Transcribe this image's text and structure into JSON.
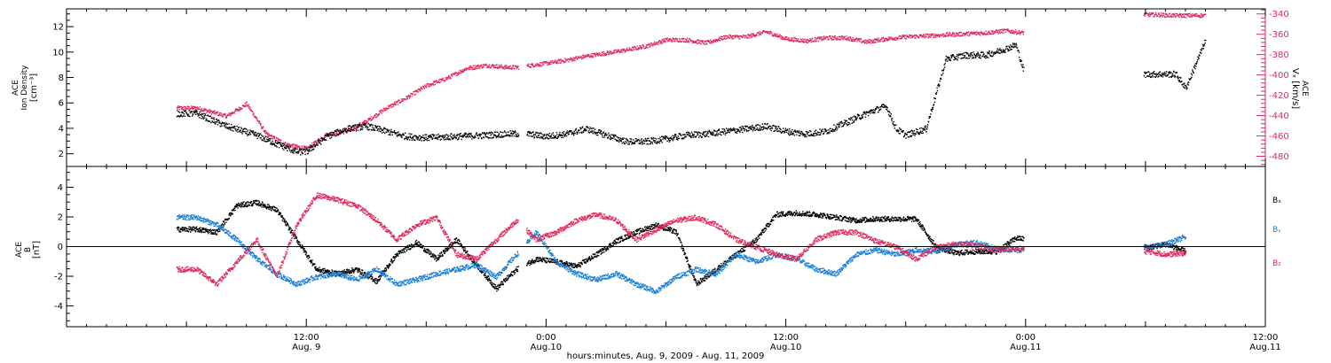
{
  "colors": {
    "black": "#000000",
    "red": "#e0285a",
    "blue": "#1a7fd4"
  },
  "chart_data": [
    {
      "type": "scatter",
      "panel": "top",
      "left_axis": {
        "label": [
          "ACE",
          "Ion Density",
          "[cm⁻³]"
        ],
        "ylim": [
          1,
          13.4
        ],
        "ticks": [
          2,
          4,
          6,
          8,
          10,
          12
        ],
        "tick_labels": [
          "2",
          "4",
          "6",
          "8",
          "10",
          "12"
        ]
      },
      "right_axis": {
        "label": [
          "ACE",
          "Vₓ [km/s]"
        ],
        "ylim": [
          -490,
          -335
        ],
        "ticks": [
          -480,
          -460,
          -440,
          -420,
          -400,
          -380,
          -360,
          -340
        ],
        "tick_labels": [
          "-480",
          "-460",
          "-440",
          "-420",
          "-400",
          "-380",
          "-360",
          "-340"
        ]
      },
      "series": [
        {
          "name": "Ion Density",
          "axis": "left",
          "color": "#000000",
          "x": [
            6.5,
            8,
            9.5,
            10.5,
            11.5,
            12,
            13,
            14,
            15,
            16,
            17,
            18,
            19.5,
            21,
            22,
            23,
            24,
            25,
            26,
            27,
            28,
            29,
            30,
            31,
            32,
            33,
            34,
            35,
            36,
            37,
            38,
            39,
            40,
            41,
            41.5,
            42,
            43,
            44,
            45,
            46,
            46.8,
            47.5,
            48,
            54,
            55.5,
            56,
            57
          ],
          "y": [
            5.2,
            4.2,
            3.5,
            2.8,
            2.2,
            2.2,
            3.4,
            4.0,
            4.2,
            3.8,
            3.4,
            3.3,
            3.4,
            3.5,
            3.6,
            3.6,
            3.4,
            3.6,
            4.0,
            3.5,
            3.0,
            3.0,
            3.2,
            3.5,
            3.6,
            3.8,
            4.0,
            4.2,
            3.8,
            3.6,
            3.8,
            4.5,
            5.2,
            5.8,
            4.0,
            3.5,
            4.0,
            9.5,
            9.8,
            9.8,
            10.2,
            10.6,
            8.0,
            8.3,
            8.3,
            7.2,
            11.0
          ]
        },
        {
          "name": "Vx",
          "axis": "right",
          "color": "#e0285a",
          "x": [
            6.5,
            8,
            9,
            10,
            11,
            12,
            13,
            14,
            15,
            16,
            17,
            18,
            19,
            20,
            21,
            22,
            22.5,
            24,
            25,
            26,
            27,
            28,
            29,
            30,
            31,
            32,
            33,
            34,
            35,
            36,
            37,
            38,
            39,
            40,
            41,
            42,
            43,
            44,
            45,
            46,
            47,
            47.8,
            54,
            55.5,
            56,
            57
          ],
          "y": [
            -432,
            -440,
            -428,
            -458,
            -468,
            -472,
            -458,
            -455,
            -445,
            -432,
            -422,
            -410,
            -403,
            -393,
            -390,
            -392,
            -392,
            -388,
            -385,
            -381,
            -378,
            -375,
            -371,
            -365,
            -365,
            -368,
            -362,
            -362,
            -357,
            -364,
            -366,
            -363,
            -363,
            -367,
            -364,
            -362,
            -361,
            -360,
            -359,
            -358,
            -356,
            -358,
            -340,
            -341,
            -341,
            -341
          ]
        }
      ]
    },
    {
      "type": "line",
      "panel": "bottom",
      "axis_label": [
        "ACE",
        "B",
        "[nT]"
      ],
      "ylim": [
        -5.4,
        5.4
      ],
      "ticks": [
        -4,
        -2,
        0,
        2,
        4
      ],
      "tick_labels": [
        "-4",
        "-2",
        "0",
        "2",
        "4"
      ],
      "xlabel": "hours:minutes, Aug.  9, 2009 - Aug. 11, 2009",
      "x_ticks": [
        12,
        24,
        36,
        48,
        60
      ],
      "x_tick_labels": [
        [
          "12:00",
          "Aug. 9"
        ],
        [
          "0:00",
          "Aug.10"
        ],
        [
          "12:00",
          "Aug.10"
        ],
        [
          "0:00",
          "Aug.11"
        ],
        [
          "12:00",
          "Aug.11"
        ]
      ],
      "series": [
        {
          "name": "Bₓ",
          "color": "#000000",
          "x": [
            6.5,
            7.5,
            8.5,
            9.5,
            10.5,
            11.5,
            12.5,
            13.5,
            14.5,
            15.5,
            16.5,
            17.5,
            18.5,
            19.5,
            20.5,
            21.5,
            22.5,
            23.5,
            24.5,
            25.5,
            26.5,
            27.5,
            28.5,
            29.5,
            30.5,
            31.5,
            32.5,
            33.5,
            34.5,
            35.5,
            36.5,
            37.5,
            38.5,
            39.5,
            40.5,
            41.5,
            42.5,
            43.5,
            44.5,
            45.5,
            46.5,
            47.5,
            54.2,
            55,
            56
          ],
          "y": [
            1.2,
            1.0,
            2.8,
            3.0,
            2.5,
            0.5,
            -1.5,
            -1.8,
            -1.5,
            -2.3,
            -0.5,
            0.3,
            -0.8,
            0.5,
            -1.2,
            -2.8,
            -1.5,
            -0.8,
            -1.0,
            -1.3,
            -0.5,
            0.4,
            1.0,
            1.5,
            1.0,
            -2.5,
            -1.5,
            -0.5,
            0.5,
            2.2,
            2.3,
            2.2,
            2.0,
            1.8,
            1.9,
            1.9,
            1.9,
            0.0,
            -0.4,
            -0.3,
            -0.3,
            0.6,
            0.0,
            0.2,
            -0.3
          ]
        },
        {
          "name": "Bᵧ",
          "color": "#1a7fd4",
          "x": [
            6.5,
            7.5,
            8.5,
            9.5,
            10.5,
            11.5,
            12.5,
            13.5,
            14.5,
            15.5,
            16.5,
            17.5,
            18.5,
            19.5,
            20.5,
            21.5,
            22.5,
            23.5,
            24.5,
            25.5,
            26.5,
            27.5,
            28.5,
            29.5,
            30.5,
            31.5,
            32.5,
            33.5,
            34.5,
            35.5,
            36.5,
            37.5,
            38.5,
            39.5,
            40.5,
            41.5,
            42.5,
            43.5,
            44.5,
            45.5,
            46.5,
            47.5,
            54.2,
            55,
            56
          ],
          "y": [
            2.0,
            1.5,
            0.5,
            -0.8,
            -1.8,
            -2.5,
            -2.0,
            -1.8,
            -2.2,
            -1.5,
            -2.5,
            -2.2,
            -1.8,
            -1.5,
            -1.2,
            -2.0,
            -0.5,
            1.0,
            -1.0,
            -1.8,
            -2.2,
            -1.8,
            -2.5,
            -3.0,
            -2.0,
            -1.5,
            -1.8,
            -0.5,
            -1.0,
            -0.5,
            -0.8,
            -1.5,
            -1.8,
            -0.5,
            -0.2,
            -0.5,
            -0.2,
            -0.3,
            0.2,
            0.3,
            -0.1,
            -0.2,
            0.0,
            0.2,
            0.7
          ]
        },
        {
          "name": "B₂",
          "color": "#e0285a",
          "x": [
            6.5,
            7.5,
            8.5,
            9.5,
            10.5,
            11.5,
            12.5,
            13.5,
            14.5,
            15.5,
            16.5,
            17.5,
            18.5,
            19.5,
            20.5,
            21.5,
            22.5,
            23.5,
            24.5,
            25.5,
            26.5,
            27.5,
            28.5,
            29.5,
            30.5,
            31.5,
            32.5,
            33.5,
            34.5,
            35.5,
            36.5,
            37.5,
            38.5,
            39.5,
            40.5,
            41.5,
            42.5,
            43.5,
            44.5,
            45.5,
            46.5,
            47.5,
            54.2,
            55,
            56
          ],
          "y": [
            -1.5,
            -2.5,
            -1.0,
            0.5,
            -2.0,
            1.5,
            3.5,
            3.2,
            2.8,
            1.8,
            0.5,
            1.5,
            2.0,
            -0.5,
            -0.8,
            0.5,
            1.8,
            0.5,
            1.0,
            1.8,
            2.2,
            1.8,
            0.5,
            1.2,
            1.8,
            2.0,
            1.5,
            0.5,
            0.0,
            -0.5,
            -0.8,
            0.5,
            1.0,
            1.0,
            0.4,
            0.0,
            -0.8,
            0.0,
            0.2,
            0.1,
            -0.2,
            -0.1,
            -0.3,
            -0.5,
            -0.4
          ]
        }
      ]
    }
  ],
  "labels": {
    "top_left": [
      "ACE",
      "Ion Density",
      "[cm⁻³]"
    ],
    "top_right": [
      "ACE",
      "Vₓ [km/s]"
    ],
    "bottom_left": [
      "ACE",
      "B",
      "[nT]"
    ],
    "legend": [
      "Bₓ",
      "Bᵧ",
      "B₂"
    ],
    "xlabel": "hours:minutes, Aug.  9, 2009 - Aug. 11, 2009"
  }
}
